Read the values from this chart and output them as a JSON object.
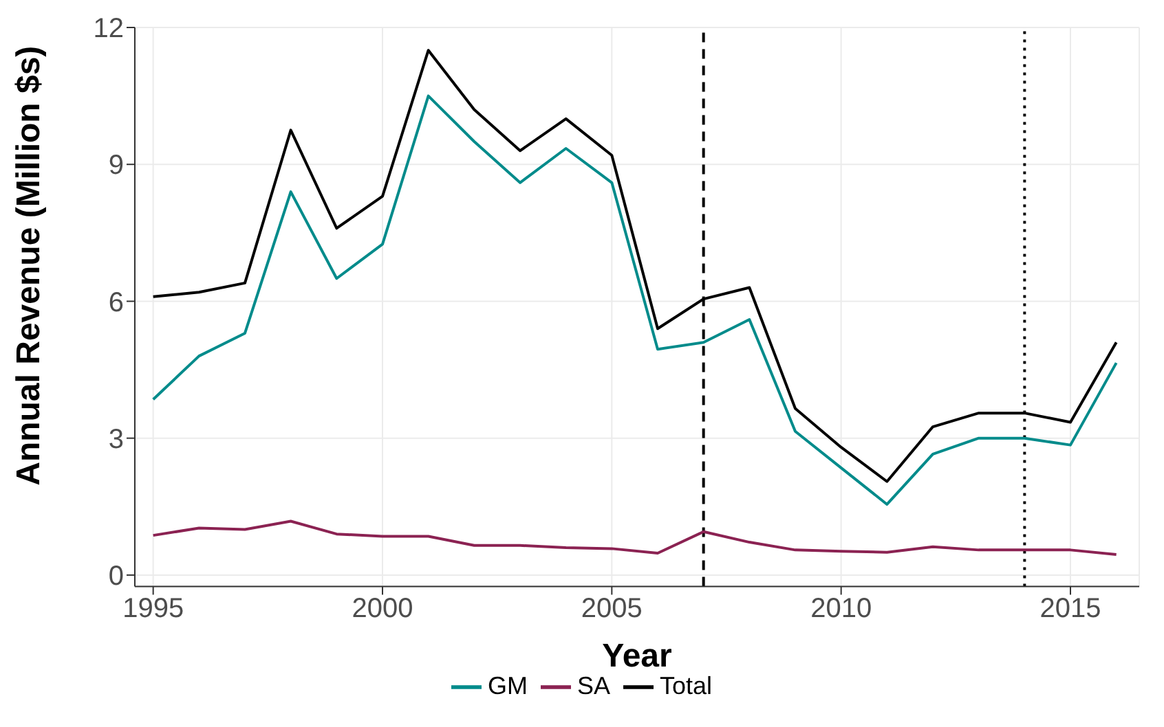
{
  "chart_data": {
    "type": "line",
    "xlabel": "Year",
    "ylabel": "Annual Revenue (Million $s)",
    "x": [
      1995,
      1996,
      1997,
      1998,
      1999,
      2000,
      2001,
      2002,
      2003,
      2004,
      2005,
      2006,
      2007,
      2008,
      2009,
      2010,
      2011,
      2012,
      2013,
      2014,
      2015,
      2016
    ],
    "series": [
      {
        "name": "GM",
        "color": "#008b8b",
        "values": [
          3.85,
          4.8,
          5.3,
          8.4,
          6.5,
          7.25,
          10.5,
          9.5,
          8.6,
          9.35,
          8.6,
          4.95,
          5.1,
          5.6,
          3.15,
          2.35,
          1.55,
          2.65,
          3.0,
          3.0,
          2.85,
          4.65
        ]
      },
      {
        "name": "SA",
        "color": "#8b2252",
        "values": [
          0.87,
          1.03,
          1.0,
          1.18,
          0.9,
          0.85,
          0.85,
          0.65,
          0.65,
          0.6,
          0.58,
          0.48,
          0.95,
          0.72,
          0.55,
          0.52,
          0.5,
          0.62,
          0.55,
          0.55,
          0.55,
          0.45
        ]
      },
      {
        "name": "Total",
        "color": "#000000",
        "values": [
          6.1,
          6.2,
          6.4,
          9.75,
          7.6,
          8.3,
          11.5,
          10.2,
          9.3,
          10.0,
          9.2,
          5.4,
          6.05,
          6.3,
          3.65,
          2.8,
          2.05,
          3.25,
          3.55,
          3.55,
          3.35,
          5.1
        ]
      }
    ],
    "xlim": [
      1994.6,
      2016.5
    ],
    "xticks": [
      1995,
      2000,
      2005,
      2010,
      2015
    ],
    "ylim": [
      -0.25,
      12
    ],
    "yticks": [
      0,
      3,
      6,
      9,
      12
    ],
    "ref_lines": [
      {
        "axis": "x",
        "value": 2007,
        "line_style": "dashed",
        "color": "#000000"
      },
      {
        "axis": "x",
        "value": 2014,
        "line_style": "dotted",
        "color": "#000000"
      }
    ],
    "grid": true,
    "legend": "bottom",
    "marker": "none",
    "line_style": "solid"
  }
}
